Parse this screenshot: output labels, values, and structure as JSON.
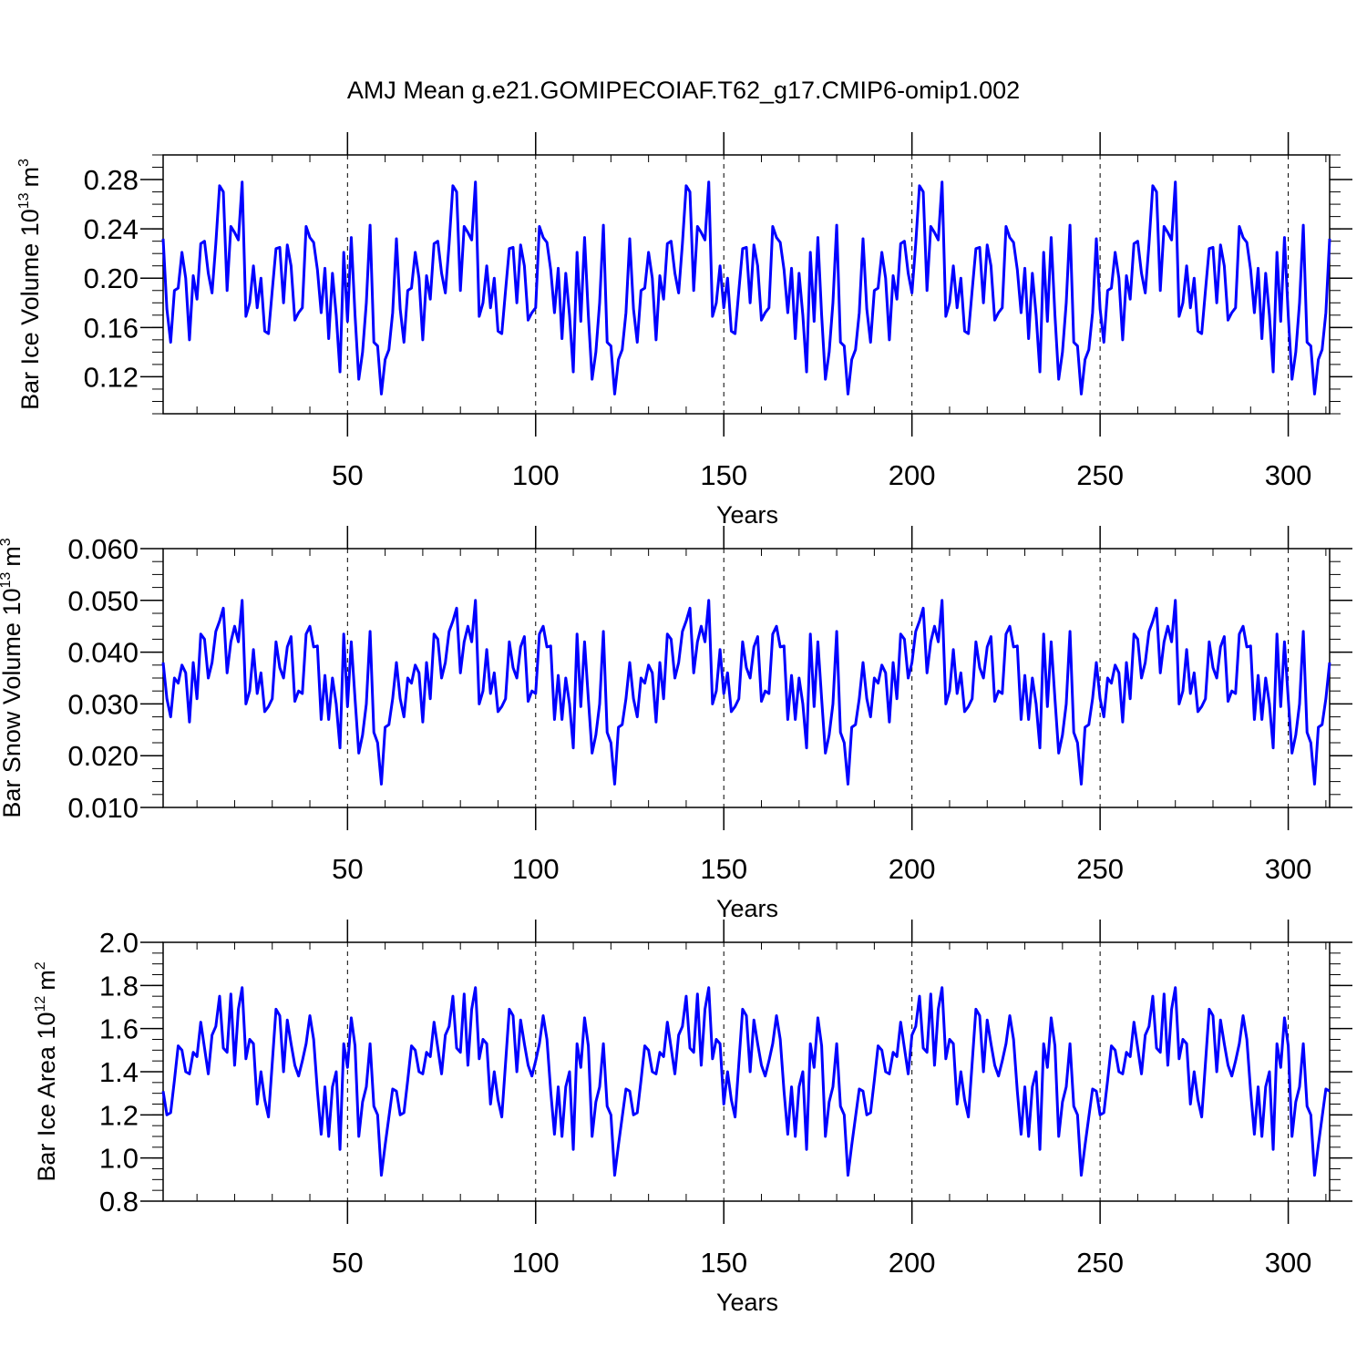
{
  "title": "AMJ Mean g.e21.GOMIPECOIAF.T62_g17.CMIP6-omip1.002",
  "line_color": "#0000ff",
  "chart_data": [
    {
      "type": "line",
      "title": "AMJ Mean g.e21.GOMIPECOIAF.T62_g17.CMIP6-omip1.002",
      "xlabel": "Years",
      "ylabel": "Bar Ice Volume 10",
      "ylabel_exp": "13",
      "ylabel_unit": "m",
      "ylabel_unit_exp": "3",
      "xlim": [
        1,
        311
      ],
      "ylim": [
        0.09,
        0.3
      ],
      "xticks": [
        50,
        100,
        150,
        200,
        250,
        300
      ],
      "xtick_labels": [
        "50",
        "100",
        "150",
        "200",
        "250",
        "300"
      ],
      "yticks": [
        0.12,
        0.16,
        0.2,
        0.24,
        0.28
      ],
      "ytick_labels": [
        "0.12",
        "0.16",
        "0.20",
        "0.24",
        "0.28"
      ],
      "grid": "vertical dashed at major x ticks",
      "period": 62,
      "values_cycle": [
        0.232,
        0.175,
        0.148,
        0.19,
        0.192,
        0.221,
        0.2,
        0.15,
        0.202,
        0.183,
        0.228,
        0.23,
        0.204,
        0.188,
        0.228,
        0.275,
        0.27,
        0.19,
        0.242,
        0.237,
        0.231,
        0.278,
        0.169,
        0.18,
        0.21,
        0.176,
        0.2,
        0.157,
        0.155,
        0.19,
        0.224,
        0.225,
        0.18,
        0.227,
        0.21,
        0.166,
        0.172,
        0.176,
        0.242,
        0.233,
        0.229,
        0.207,
        0.172,
        0.208,
        0.151,
        0.204,
        0.17,
        0.124,
        0.221,
        0.165,
        0.233,
        0.17,
        0.118,
        0.14,
        0.18,
        0.243,
        0.148,
        0.145,
        0.106,
        0.134,
        0.142,
        0.172
      ],
      "values_note": "the 62-value cycle repeats across the 311 years (5 cycles + 1 value)"
    },
    {
      "type": "line",
      "xlabel": "Years",
      "ylabel": "Bar Snow Volume 10",
      "ylabel_exp": "13",
      "ylabel_unit": "m",
      "ylabel_unit_exp": "3",
      "xlim": [
        1,
        311
      ],
      "ylim": [
        0.01,
        0.06
      ],
      "xticks": [
        50,
        100,
        150,
        200,
        250,
        300
      ],
      "xtick_labels": [
        "50",
        "100",
        "150",
        "200",
        "250",
        "300"
      ],
      "yticks": [
        0.01,
        0.02,
        0.03,
        0.04,
        0.05,
        0.06
      ],
      "ytick_labels": [
        "0.010",
        "0.020",
        "0.030",
        "0.040",
        "0.050",
        "0.060"
      ],
      "grid": "vertical dashed at major x ticks",
      "period": 62,
      "values_cycle": [
        0.038,
        0.031,
        0.0275,
        0.035,
        0.034,
        0.0375,
        0.036,
        0.0265,
        0.038,
        0.031,
        0.0435,
        0.0425,
        0.035,
        0.038,
        0.044,
        0.046,
        0.0485,
        0.036,
        0.042,
        0.045,
        0.042,
        0.05,
        0.03,
        0.0325,
        0.0405,
        0.032,
        0.036,
        0.0285,
        0.0295,
        0.031,
        0.042,
        0.037,
        0.035,
        0.041,
        0.043,
        0.0305,
        0.0325,
        0.032,
        0.0435,
        0.045,
        0.041,
        0.0412,
        0.027,
        0.0355,
        0.027,
        0.035,
        0.03,
        0.0215,
        0.0435,
        0.0295,
        0.042,
        0.031,
        0.0205,
        0.024,
        0.03,
        0.044,
        0.0245,
        0.0225,
        0.0145,
        0.0255,
        0.026,
        0.031
      ],
      "values_note": "the 62-value cycle repeats across the 311 years (5 cycles + 1 value)"
    },
    {
      "type": "line",
      "xlabel": "Years",
      "ylabel": "Bar Ice Area 10",
      "ylabel_exp": "12",
      "ylabel_unit": "m",
      "ylabel_unit_exp": "2",
      "xlim": [
        1,
        311
      ],
      "ylim": [
        0.8,
        2.0
      ],
      "xticks": [
        50,
        100,
        150,
        200,
        250,
        300
      ],
      "xtick_labels": [
        "50",
        "100",
        "150",
        "200",
        "250",
        "300"
      ],
      "yticks": [
        0.8,
        1.0,
        1.2,
        1.4,
        1.6,
        1.8,
        2.0
      ],
      "ytick_labels": [
        "0.8",
        "1.0",
        "1.2",
        "1.4",
        "1.6",
        "1.8",
        "2.0"
      ],
      "grid": "vertical dashed at major x ticks",
      "period": 62,
      "values_cycle": [
        1.31,
        1.2,
        1.21,
        1.36,
        1.52,
        1.5,
        1.4,
        1.39,
        1.49,
        1.47,
        1.63,
        1.51,
        1.39,
        1.57,
        1.61,
        1.75,
        1.51,
        1.49,
        1.76,
        1.43,
        1.69,
        1.79,
        1.46,
        1.55,
        1.53,
        1.25,
        1.4,
        1.27,
        1.19,
        1.44,
        1.69,
        1.66,
        1.4,
        1.64,
        1.53,
        1.43,
        1.38,
        1.45,
        1.53,
        1.66,
        1.55,
        1.31,
        1.11,
        1.33,
        1.1,
        1.33,
        1.4,
        1.04,
        1.53,
        1.42,
        1.65,
        1.52,
        1.1,
        1.26,
        1.33,
        1.53,
        1.24,
        1.2,
        0.92,
        1.06,
        1.19,
        1.32
      ],
      "values_note": "the 62-value cycle repeats across the 311 years (5 cycles + 1 value)"
    }
  ]
}
